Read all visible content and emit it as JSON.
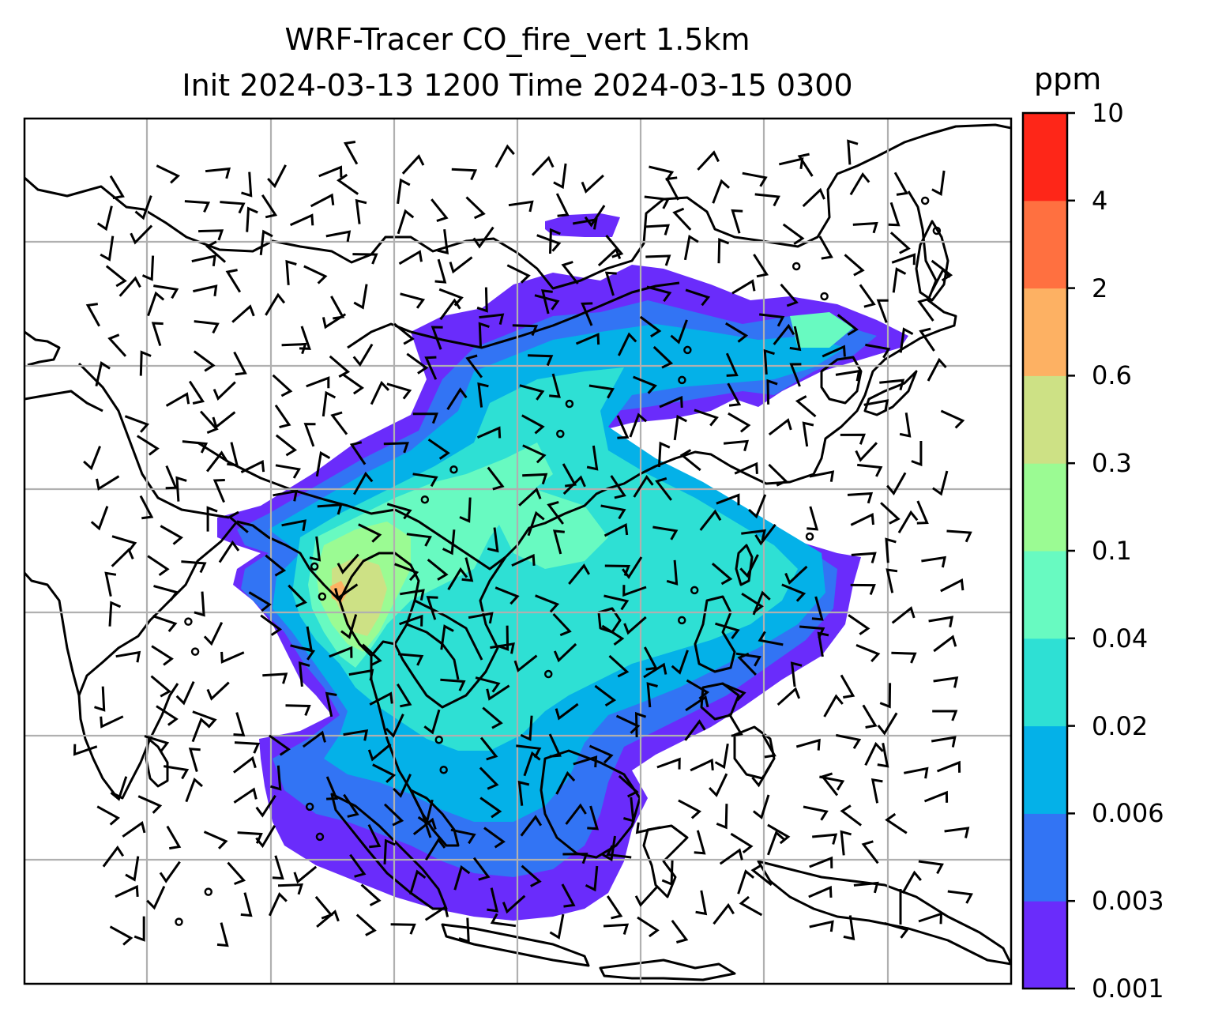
{
  "title": {
    "line1": "WRF-Tracer CO_fire_vert 1.5km",
    "line2": "Init 2024-03-13 1200 Time 2024-03-15 0300"
  },
  "colorbar": {
    "unit": "ppm",
    "ticks": [
      "0.001",
      "0.003",
      "0.006",
      "0.02",
      "0.04",
      "0.1",
      "0.3",
      "0.6",
      "2",
      "4",
      "10"
    ],
    "colors": [
      "#6a2cfb",
      "#3274f4",
      "#04b1e8",
      "#2ee0d4",
      "#68fac1",
      "#9bfb93",
      "#cde185",
      "#fdb163",
      "#ff7040",
      "#fe2618"
    ]
  },
  "map": {
    "layer_colors": [
      "#6a2cfb",
      "#3274f4",
      "#04b1e8",
      "#2ee0d4",
      "#68fac1",
      "#9bfb93",
      "#cde185",
      "#fdb163"
    ],
    "gridlines": true
  }
}
